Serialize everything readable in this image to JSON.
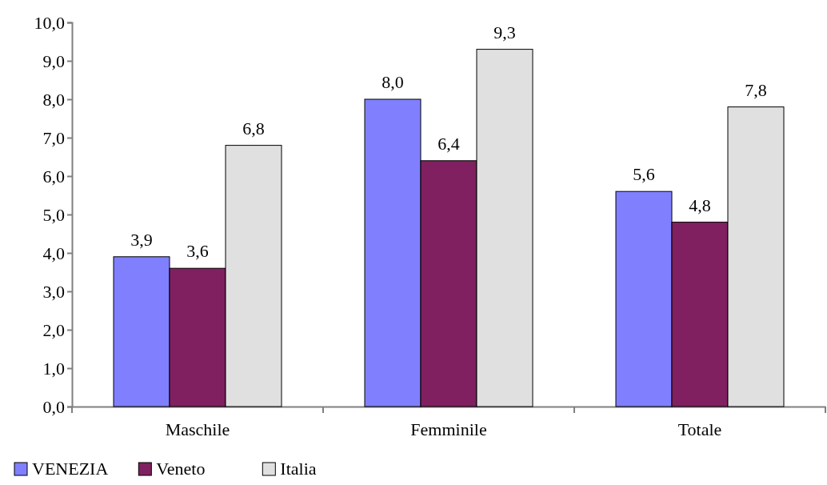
{
  "chart_data": {
    "type": "bar",
    "categories": [
      "Maschile",
      "Femminile",
      "Totale"
    ],
    "series": [
      {
        "name": "VENEZIA",
        "color": "#8080ff",
        "values": [
          3.9,
          8.0,
          5.6
        ]
      },
      {
        "name": "Veneto",
        "color": "#802060",
        "values": [
          3.6,
          6.4,
          4.8
        ]
      },
      {
        "name": "Italia",
        "color": "#e0e0e0",
        "values": [
          6.8,
          9.3,
          7.8
        ]
      }
    ],
    "ylim": [
      0,
      10
    ],
    "yticks": [
      {
        "value": 0,
        "label": "0,0"
      },
      {
        "value": 1,
        "label": "1,0"
      },
      {
        "value": 2,
        "label": "2,0"
      },
      {
        "value": 3,
        "label": "3,0"
      },
      {
        "value": 4,
        "label": "4,0"
      },
      {
        "value": 5,
        "label": "5,0"
      },
      {
        "value": 6,
        "label": "6,0"
      },
      {
        "value": 7,
        "label": "7,0"
      },
      {
        "value": 8,
        "label": "8,0"
      },
      {
        "value": 9,
        "label": "9,0"
      },
      {
        "value": 10,
        "label": "10,0"
      }
    ],
    "value_labels": [
      [
        "3,9",
        "8,0",
        "5,6"
      ],
      [
        "3,6",
        "6,4",
        "4,8"
      ],
      [
        "6,8",
        "9,3",
        "7,8"
      ]
    ],
    "legend": "bottom left",
    "grid": false
  }
}
